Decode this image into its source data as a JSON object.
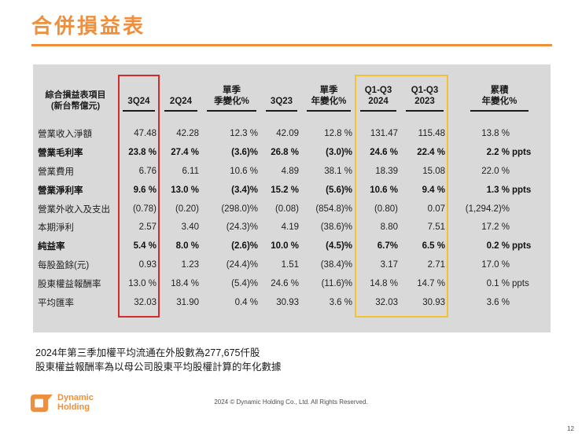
{
  "title": "合併損益表",
  "table": {
    "headers": [
      {
        "line1": "綜合損益表項目",
        "line2": "(新台幣億元)"
      },
      {
        "line1": "3Q24",
        "line2": ""
      },
      {
        "line1": "2Q24",
        "line2": ""
      },
      {
        "line1": "單季",
        "line2": "季變化%"
      },
      {
        "line1": "3Q23",
        "line2": ""
      },
      {
        "line1": "單季",
        "line2": "年變化%"
      },
      {
        "line1": "Q1-Q3",
        "line2": "2024"
      },
      {
        "line1": "Q1-Q3",
        "line2": "2023"
      },
      {
        "line1": "累積",
        "line2": "年變化%"
      }
    ],
    "rows": [
      {
        "label": "營業收入淨額",
        "bold": false,
        "cells": [
          "47.48",
          "42.28",
          "12.3 %",
          "42.09",
          "12.8 %",
          "131.47",
          "115.48",
          "13.8 %"
        ],
        "acc_unit": ""
      },
      {
        "label": "營業毛利率",
        "bold": true,
        "cells": [
          "23.8 %",
          "27.4 %",
          "(3.6)%",
          "26.8 %",
          "(3.0)%",
          "24.6 %",
          "22.4 %",
          "2.2 %"
        ],
        "acc_unit": "ppts"
      },
      {
        "label": "營業費用",
        "bold": false,
        "cells": [
          "6.76",
          "6.11",
          "10.6 %",
          "4.89",
          "38.1 %",
          "18.39",
          "15.08",
          "22.0 %"
        ],
        "acc_unit": ""
      },
      {
        "label": "營業淨利率",
        "bold": true,
        "cells": [
          "9.6 %",
          "13.0 %",
          "(3.4)%",
          "15.2 %",
          "(5.6)%",
          "10.6 %",
          "9.4 %",
          "1.3 %"
        ],
        "acc_unit": "ppts"
      },
      {
        "label": "營業外收入及支出",
        "bold": false,
        "cells": [
          "(0.78)",
          "(0.20)",
          "(298.0)%",
          "(0.08)",
          "(854.8)%",
          "(0.80)",
          "0.07",
          "(1,294.2)%"
        ],
        "acc_unit": ""
      },
      {
        "label": "本期淨利",
        "bold": false,
        "cells": [
          "2.57",
          "3.40",
          "(24.3)%",
          "4.19",
          "(38.6)%",
          "8.80",
          "7.51",
          "17.2 %"
        ],
        "acc_unit": ""
      },
      {
        "label": "純益率",
        "bold": true,
        "cells": [
          "5.4 %",
          "8.0 %",
          "(2.6)%",
          "10.0 %",
          "(4.5)%",
          "6.7%",
          "6.5 %",
          "0.2 %"
        ],
        "acc_unit": "ppts"
      },
      {
        "label": "每股盈餘(元)",
        "bold": false,
        "cells": [
          "0.93",
          "1.23",
          "(24.4)%",
          "1.51",
          "(38.4)%",
          "3.17",
          "2.71",
          "17.0 %"
        ],
        "acc_unit": ""
      },
      {
        "label": "股東權益報酬率",
        "bold": false,
        "cells": [
          "13.0 %",
          "18.4 %",
          "(5.4)%",
          "24.6 %",
          "(11.6)%",
          "14.8 %",
          "14.7 %",
          "0.1 %"
        ],
        "acc_unit": "ppts"
      },
      {
        "label": "平均匯率",
        "bold": false,
        "cells": [
          "32.03",
          "31.90",
          "0.4 %",
          "30.93",
          "3.6 %",
          "32.03",
          "30.93",
          "3.6 %"
        ],
        "acc_unit": ""
      }
    ],
    "highlights": {
      "red_box_column": "3Q24",
      "yellow_box_columns": "Q1-Q3 2024 and Q1-Q3 2023"
    }
  },
  "footnotes": [
    "2024年第三季加權平均流通在外股數為277,675仟股",
    "股東權益報酬率為以母公司股東平均股權計算的年化數據"
  ],
  "footer": {
    "logo_line1": "Dynamic",
    "logo_line2": "Holding",
    "copyright": "2024 © Dynamic Holding Co., Ltd. All Rights Reserved."
  },
  "page": {
    "number": "12"
  },
  "colors": {
    "accent_orange": "#EF8F3C",
    "highlight_red": "#D42A2A",
    "highlight_yellow": "#F2C230",
    "table_background": "#D9D9D9"
  }
}
